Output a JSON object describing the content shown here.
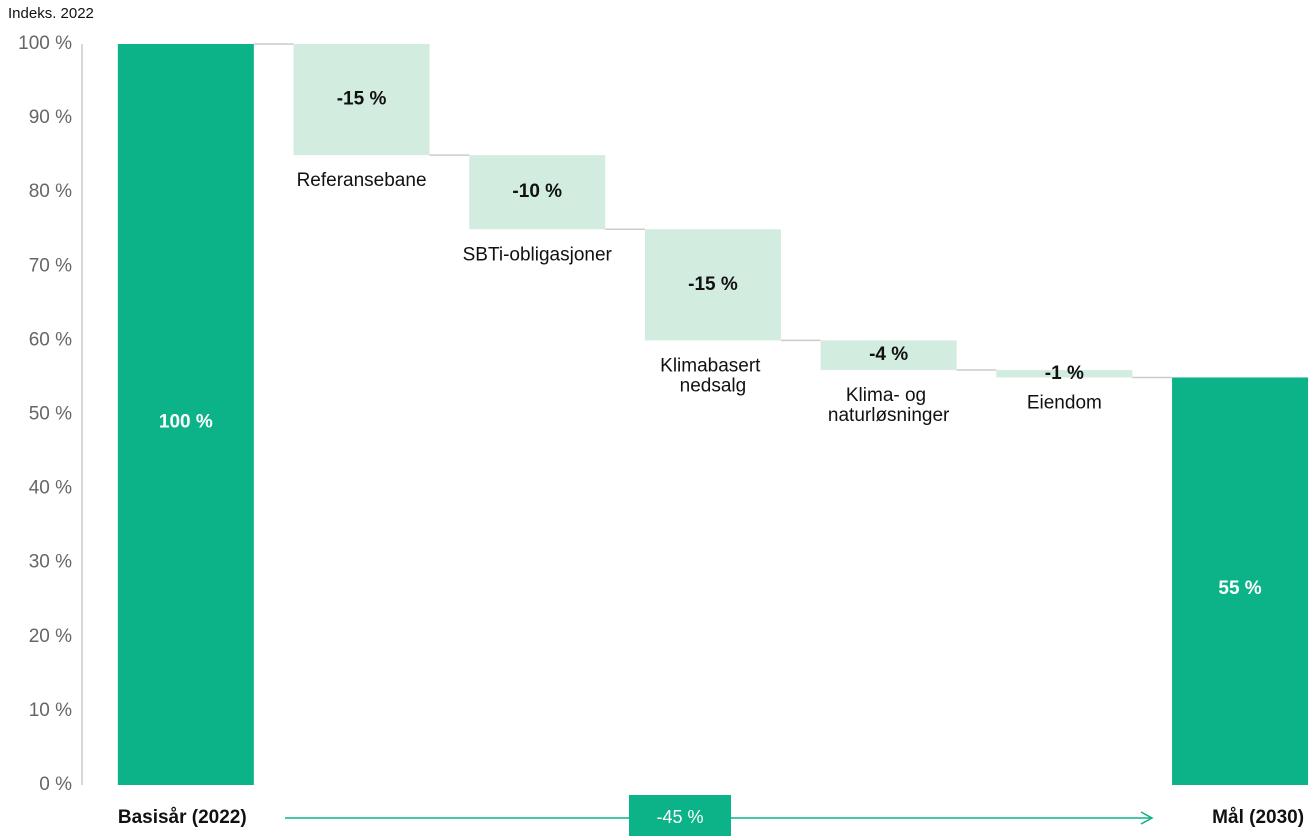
{
  "chart_data": {
    "type": "waterfall",
    "y_label": "Indeks. 2022",
    "categories": [
      "Basisår (2022)",
      "Referansebane",
      "SBTi-obligasjoner",
      "Klimabasert nedsalg",
      "Klima- og naturløsninger",
      "Eiendom",
      "Mål (2030)"
    ],
    "kinds": [
      "total",
      "relative",
      "relative",
      "relative",
      "relative",
      "relative",
      "total"
    ],
    "values": [
      100,
      -15,
      -10,
      -15,
      -4,
      -1,
      55
    ],
    "value_labels": [
      "100 %",
      "-15 %",
      "-10 %",
      "-15 %",
      "-4 %",
      "-1 %",
      "55 %"
    ],
    "total_color": "#0db388",
    "step_color": "#d3ece0",
    "annotation": "-45 %",
    "ylim": [
      0,
      100
    ],
    "yticks": [
      {
        "value": 0,
        "label": "0 %"
      },
      {
        "value": 10,
        "label": "10 %"
      },
      {
        "value": 20,
        "label": "20 %"
      },
      {
        "value": 30,
        "label": "30 %"
      },
      {
        "value": 40,
        "label": "40 %"
      },
      {
        "value": 50,
        "label": "50 %"
      },
      {
        "value": 60,
        "label": "60 %"
      },
      {
        "value": 70,
        "label": "70 %"
      },
      {
        "value": 80,
        "label": "80 %"
      },
      {
        "value": 90,
        "label": "90 %"
      },
      {
        "value": 100,
        "label": "100 %"
      }
    ]
  }
}
